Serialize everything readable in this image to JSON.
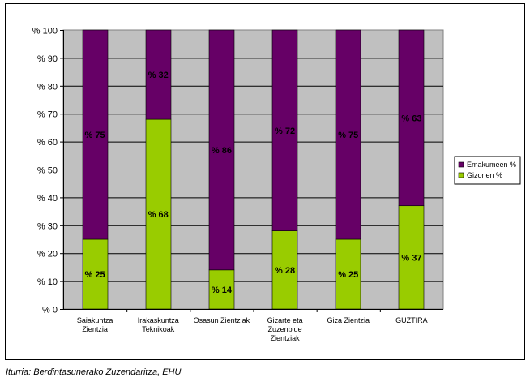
{
  "chart_data": {
    "type": "bar",
    "stacked": true,
    "categories": [
      [
        "Saiakuntza",
        "Zientzia"
      ],
      [
        "Irakaskuntza",
        "Teknikoak"
      ],
      [
        "Osasun Zientziak"
      ],
      [
        "Gizarte eta",
        "Zuzenbide",
        "Zientziak"
      ],
      [
        "Giza Zientzia"
      ],
      [
        "GUZTIRA"
      ]
    ],
    "series": [
      {
        "name": "Gizonen %",
        "color": "#99cc00",
        "values": [
          25,
          68,
          14,
          28,
          25,
          37
        ]
      },
      {
        "name": "Emakumeen %",
        "color": "#660066",
        "values": [
          75,
          32,
          86,
          72,
          75,
          63
        ]
      }
    ],
    "legend_order": [
      "Emakumeen %",
      "Gizonen %"
    ],
    "legend_position": "right",
    "ylim": [
      0,
      100
    ],
    "yticks": [
      0,
      10,
      20,
      30,
      40,
      50,
      60,
      70,
      80,
      90,
      100
    ],
    "tick_prefix": "% ",
    "label_prefix": "% ",
    "plot_background": "#c0c0c0",
    "grid": true,
    "title": "",
    "xlabel": "",
    "ylabel": ""
  },
  "source_note": "Iturria: Berdintasunerako Zuzendaritza, EHU"
}
